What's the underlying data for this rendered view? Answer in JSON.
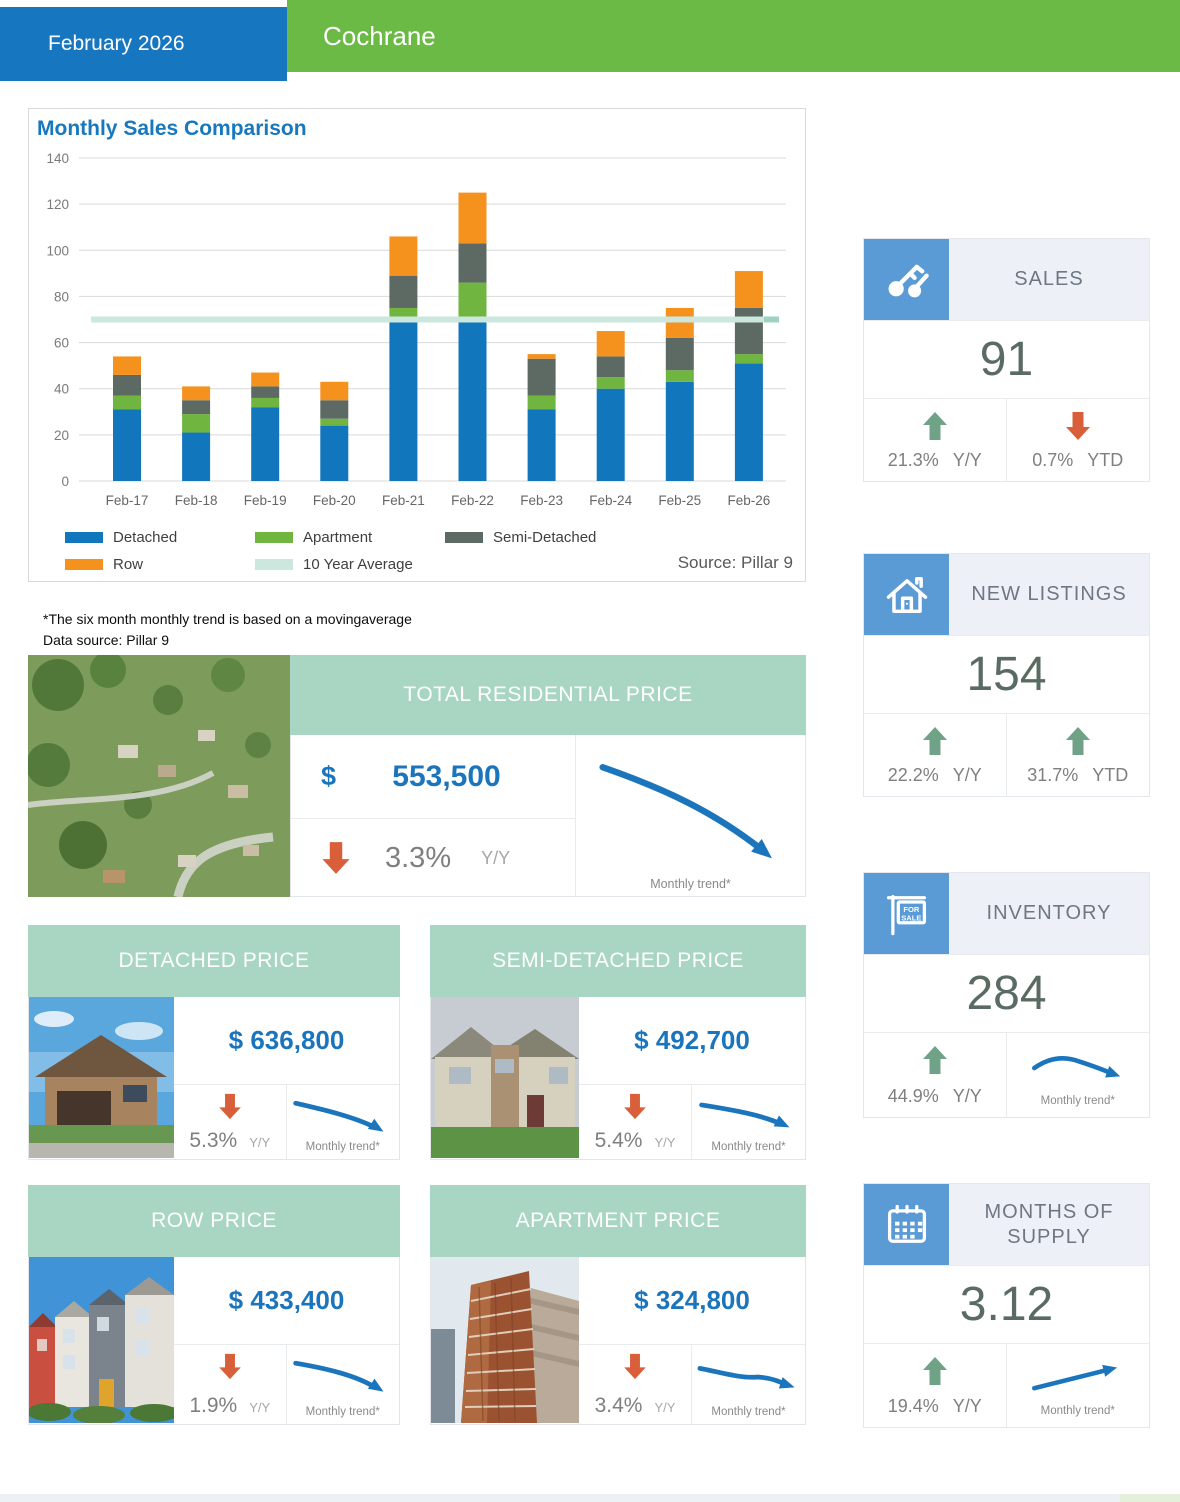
{
  "header": {
    "date": "February 2026",
    "city": "Cochrane"
  },
  "chart_data": {
    "type": "bar",
    "stacked": true,
    "title": "Monthly Sales Comparison",
    "source": "Source: Pillar 9",
    "categories": [
      "Feb-17",
      "Feb-18",
      "Feb-19",
      "Feb-20",
      "Feb-21",
      "Feb-22",
      "Feb-23",
      "Feb-24",
      "Feb-25",
      "Feb-26"
    ],
    "series": [
      {
        "name": "Detached",
        "color": "#1176BC",
        "values": [
          31,
          21,
          32,
          24,
          69,
          69,
          31,
          40,
          43,
          51
        ]
      },
      {
        "name": "Apartment",
        "color": "#6FB53F",
        "values": [
          6,
          8,
          4,
          3,
          6,
          17,
          6,
          5,
          5,
          4
        ]
      },
      {
        "name": "Semi-Detached",
        "color": "#5D6A63",
        "values": [
          9,
          6,
          5,
          8,
          14,
          17,
          16,
          9,
          14,
          20
        ]
      },
      {
        "name": "Row",
        "color": "#F5921E",
        "values": [
          8,
          6,
          6,
          8,
          17,
          22,
          2,
          11,
          13,
          16
        ]
      }
    ],
    "average_line": {
      "name": "10 Year Average",
      "value": 70,
      "color": "#CBE7DE"
    },
    "ylim": [
      0,
      140
    ],
    "yticks": [
      0,
      20,
      40,
      60,
      80,
      100,
      120,
      140
    ],
    "grid": true,
    "legend_position": "bottom"
  },
  "footnote": {
    "line1": "*The six month monthly trend is based on a movingaverage",
    "line2": "Data source: Pillar 9"
  },
  "kpis": [
    {
      "label": "SALES",
      "icon": "keys-icon",
      "value": "91",
      "left": {
        "dir": "up",
        "pct": "21.3%",
        "period": "Y/Y"
      },
      "right": {
        "dir": "down",
        "pct": "0.7%",
        "period": "YTD"
      }
    },
    {
      "label": "NEW LISTINGS",
      "icon": "house-icon",
      "value": "154",
      "left": {
        "dir": "up",
        "pct": "22.2%",
        "period": "Y/Y"
      },
      "right": {
        "dir": "up",
        "pct": "31.7%",
        "period": "YTD"
      }
    },
    {
      "label": "INVENTORY",
      "icon": "for-sale-sign-icon",
      "icon_lines": [
        "FOR",
        "SALE"
      ],
      "value": "284",
      "left": {
        "dir": "up",
        "pct": "44.9%",
        "period": "Y/Y"
      },
      "right": {
        "trend": "rise-then-fall",
        "label": "Monthly trend*"
      }
    },
    {
      "label": "MONTHS OF SUPPLY",
      "icon": "calendar-icon",
      "value": "3.12",
      "left": {
        "dir": "up",
        "pct": "19.4%",
        "period": "Y/Y"
      },
      "right": {
        "trend": "rising",
        "label": "Monthly trend*"
      }
    }
  ],
  "price_cards": {
    "total": {
      "title": "TOTAL RESIDENTIAL PRICE",
      "currency": "$",
      "amount": "553,500",
      "dir": "down",
      "pct": "3.3%",
      "period": "Y/Y",
      "trend": "falling",
      "trend_label": "Monthly trend*",
      "photo": "aerial-neighbourhood-photo"
    },
    "detached": {
      "title": "DETACHED PRICE",
      "amount": "$ 636,800",
      "dir": "down",
      "pct": "5.3%",
      "period": "Y/Y",
      "trend": "falling",
      "trend_label": "Monthly trend*",
      "photo": "detached-house-photo"
    },
    "semi_detached": {
      "title": "SEMI-DETACHED PRICE",
      "amount": "$ 492,700",
      "dir": "down",
      "pct": "5.4%",
      "period": "Y/Y",
      "trend": "falling",
      "trend_label": "Monthly trend*",
      "photo": "semi-detached-house-photo"
    },
    "row": {
      "title": "ROW PRICE",
      "amount": "$ 433,400",
      "dir": "down",
      "pct": "1.9%",
      "period": "Y/Y",
      "trend": "falling",
      "trend_label": "Monthly trend*",
      "photo": "row-townhouses-photo"
    },
    "apartment": {
      "title": "APARTMENT PRICE",
      "amount": "$ 324,800",
      "dir": "down",
      "pct": "3.4%",
      "period": "Y/Y",
      "trend": "falling",
      "trend_label": "Monthly trend*",
      "photo": "apartment-tower-photo"
    }
  },
  "colors": {
    "header_blue": "#1776C0",
    "header_green": "#6CBA46",
    "accent_blue": "#1B75BC",
    "teal_card_header": "#A9D6C3",
    "icon_box_blue": "#5B9BD5",
    "up_arrow_green": "#6FA287",
    "down_arrow_red": "#D95F3B",
    "kpi_value_gray": "#5A6B63"
  }
}
